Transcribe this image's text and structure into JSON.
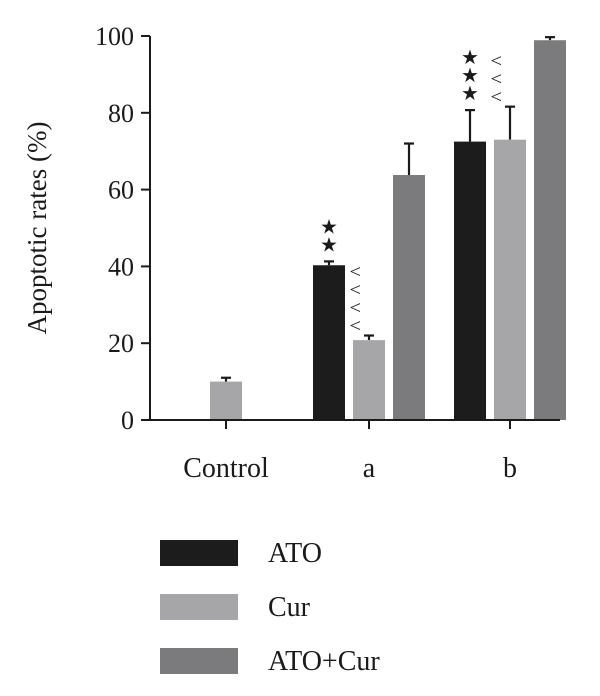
{
  "chart_data": {
    "type": "bar",
    "ylabel": "Apoptotic rates (%)",
    "ylim": [
      0,
      100
    ],
    "yticks": [
      0,
      20,
      40,
      60,
      80,
      100
    ],
    "categories": [
      "Control",
      "a",
      "b"
    ],
    "grid": false,
    "legend_position": "bottom-left",
    "series": [
      {
        "name": "ATO",
        "color": "#1c1c1c",
        "values": [
          null,
          40.3,
          72.5
        ],
        "errors": [
          null,
          1.0,
          8.2
        ],
        "annotations": [
          "",
          "★★",
          "★★★"
        ]
      },
      {
        "name": "Cur",
        "color": "#a6a6a8",
        "values": [
          null,
          20.8,
          73.0
        ],
        "errors": [
          null,
          1.2,
          8.6
        ],
        "annotations": [
          "",
          "^^^^",
          "^^^"
        ]
      },
      {
        "name": "ATO+Cur",
        "color": "#7b7b7d",
        "values": [
          null,
          63.8,
          98.9
        ],
        "errors": [
          null,
          8.2,
          0.8
        ],
        "annotations": [
          "",
          "",
          ""
        ]
      }
    ],
    "control_bar": {
      "value": 10.0,
      "error": 1.0,
      "color": "#a6a6a8"
    }
  }
}
